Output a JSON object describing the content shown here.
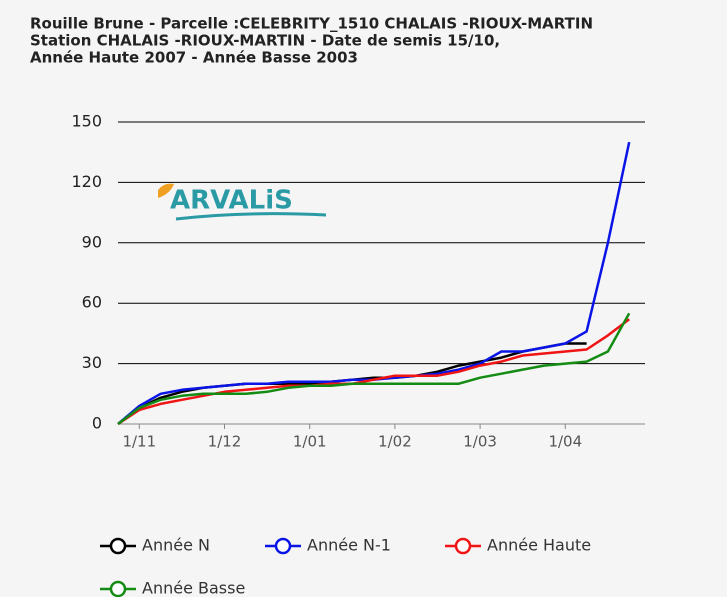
{
  "chart_data": {
    "type": "line",
    "title_lines": [
      "Rouille Brune - Parcelle :CELEBRITY_1510 CHALAIS -RIOUX-MARTIN",
      "Station CHALAIS -RIOUX-MARTIN - Date de semis 15/10,",
      "Année Haute 2007 - Année Basse 2003"
    ],
    "logo": "ARVALiS",
    "categories": [
      null,
      "1/11",
      null,
      null,
      null,
      "1/12",
      null,
      null,
      null,
      "1/01",
      null,
      null,
      null,
      "1/02",
      null,
      null,
      null,
      "1/03",
      null,
      null,
      null,
      "1/04",
      null,
      null,
      null
    ],
    "series": [
      {
        "name": "Année N",
        "color": "#000000",
        "values": [
          0,
          8,
          13,
          16,
          18,
          19,
          20,
          20,
          20,
          20,
          21,
          22,
          23,
          23,
          24,
          26,
          29,
          31,
          33,
          36,
          38,
          40,
          40,
          null,
          null
        ]
      },
      {
        "name": "Année N-1",
        "color": "#0a14e6",
        "values": [
          0,
          9,
          15,
          17,
          18,
          19,
          20,
          20,
          21,
          21,
          21,
          22,
          22,
          23,
          24,
          25,
          27,
          30,
          36,
          36,
          38,
          40,
          46,
          90,
          140
        ]
      },
      {
        "name": "Année Haute",
        "color": "#f01414",
        "values": [
          0,
          7,
          10,
          12,
          14,
          16,
          17,
          18,
          19,
          19,
          20,
          20,
          22,
          24,
          24,
          24,
          26,
          29,
          31,
          34,
          35,
          36,
          37,
          44,
          52
        ]
      },
      {
        "name": "Année Basse",
        "color": "#148c14",
        "values": [
          0,
          8,
          12,
          14,
          15,
          15,
          15,
          16,
          18,
          19,
          19,
          20,
          20,
          20,
          20,
          20,
          20,
          23,
          25,
          27,
          29,
          30,
          31,
          36,
          55
        ]
      }
    ],
    "ylim": [
      0,
      150
    ],
    "yticks": [
      0,
      30,
      60,
      90,
      120,
      150
    ],
    "grid": true
  }
}
